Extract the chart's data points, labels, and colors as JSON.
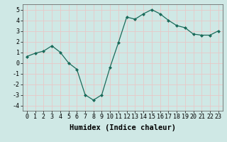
{
  "x": [
    0,
    1,
    2,
    3,
    4,
    5,
    6,
    7,
    8,
    9,
    10,
    11,
    12,
    13,
    14,
    15,
    16,
    17,
    18,
    19,
    20,
    21,
    22,
    23
  ],
  "y": [
    0.6,
    0.9,
    1.1,
    1.6,
    1.0,
    0.0,
    -0.6,
    -3.0,
    -3.5,
    -3.0,
    -0.4,
    1.9,
    4.3,
    4.1,
    4.6,
    5.0,
    4.6,
    4.0,
    3.5,
    3.3,
    2.7,
    2.6,
    2.6,
    3.0
  ],
  "line_color": "#1a6b5a",
  "marker": "D",
  "marker_size": 2,
  "xlabel": "Humidex (Indice chaleur)",
  "xlim": [
    -0.5,
    23.5
  ],
  "ylim": [
    -4.5,
    5.5
  ],
  "yticks": [
    -4,
    -3,
    -2,
    -1,
    0,
    1,
    2,
    3,
    4,
    5
  ],
  "xticks": [
    0,
    1,
    2,
    3,
    4,
    5,
    6,
    7,
    8,
    9,
    10,
    11,
    12,
    13,
    14,
    15,
    16,
    17,
    18,
    19,
    20,
    21,
    22,
    23
  ],
  "bg_color": "#cfe8e5",
  "grid_color": "#e8c8c8",
  "tick_fontsize": 6,
  "xlabel_fontsize": 7.5
}
